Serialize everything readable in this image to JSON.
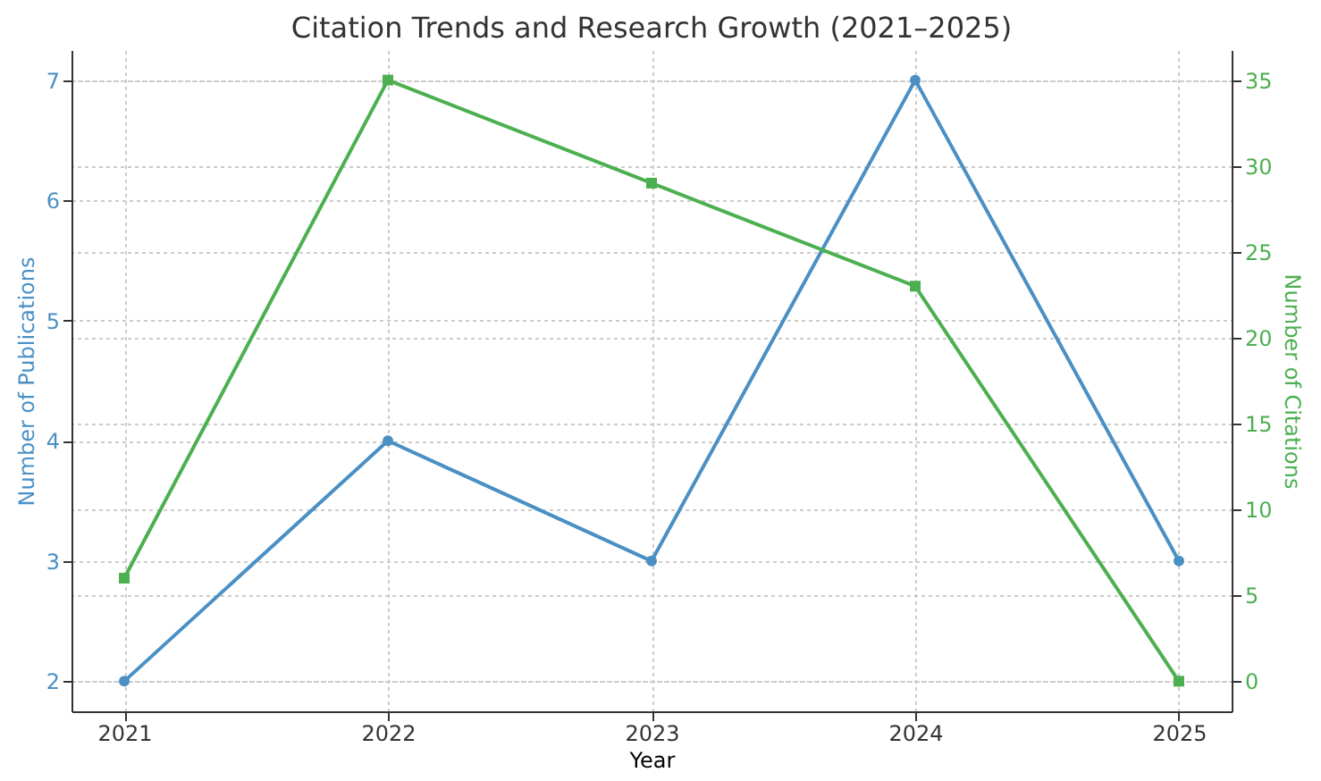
{
  "chart_data": {
    "type": "line",
    "title": "Citation Trends and Research Growth (2021–2025)",
    "xlabel": "Year",
    "ylabel": "Number of Publications",
    "y2label": "Number of Citations",
    "x": [
      2021,
      2022,
      2023,
      2024,
      2025
    ],
    "series": [
      {
        "color": "#4a90c4",
        "values": [
          2,
          4,
          3,
          7,
          3
        ],
        "marker": "circle"
      },
      {
        "color": "#4caf50",
        "values": [
          6,
          35,
          29,
          23,
          0
        ],
        "axis": "y2",
        "marker": "square"
      }
    ],
    "xlim": [
      2020.8,
      2025.2
    ],
    "xticks": [
      2021,
      2022,
      2023,
      2024,
      2025
    ],
    "ylim": [
      1.75,
      7.25
    ],
    "yticks": [
      2,
      3,
      4,
      5,
      6,
      7
    ],
    "y2lim": [
      -1.75,
      36.75
    ],
    "y2ticks": [
      0,
      5,
      10,
      15,
      20,
      25,
      30,
      35
    ],
    "grid": true,
    "line_style": "solid"
  }
}
